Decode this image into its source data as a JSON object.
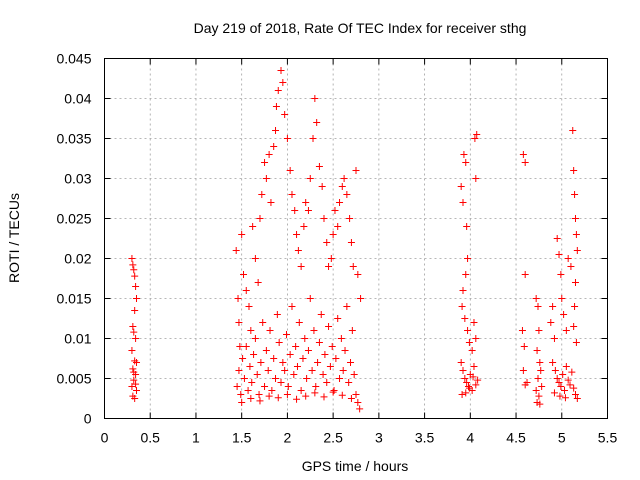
{
  "chart_data": {
    "type": "scatter",
    "title": "Day 219 of 2018, Rate Of TEC Index for receiver sthg",
    "xlabel": "GPS time / hours",
    "ylabel": "ROTI / TECUs",
    "xlim": [
      0,
      5.5
    ],
    "ylim": [
      0,
      0.045
    ],
    "xticks": [
      0,
      0.5,
      1,
      1.5,
      2,
      2.5,
      3,
      3.5,
      4,
      4.5,
      5,
      5.5
    ],
    "xtick_labels": [
      "0",
      "0.5",
      "1",
      "1.5",
      "2",
      "2.5",
      "3",
      "3.5",
      "4",
      "4.5",
      "5",
      "5.5"
    ],
    "yticks": [
      0,
      0.005,
      0.01,
      0.015,
      0.02,
      0.025,
      0.03,
      0.035,
      0.04,
      0.045
    ],
    "ytick_labels": [
      "0",
      "0.005",
      "0.01",
      "0.015",
      "0.02",
      "0.025",
      "0.03",
      "0.035",
      "0.04",
      "0.045"
    ],
    "grid": true,
    "marker": "+",
    "color": "#ff0000",
    "series": [
      {
        "name": "ROTI",
        "points": [
          [
            0.3,
            0.02
          ],
          [
            0.31,
            0.0192
          ],
          [
            0.32,
            0.0186
          ],
          [
            0.33,
            0.0178
          ],
          [
            0.34,
            0.0165
          ],
          [
            0.35,
            0.015
          ],
          [
            0.33,
            0.0135
          ],
          [
            0.31,
            0.0115
          ],
          [
            0.32,
            0.0108
          ],
          [
            0.34,
            0.01
          ],
          [
            0.3,
            0.0085
          ],
          [
            0.33,
            0.0072
          ],
          [
            0.31,
            0.0062
          ],
          [
            0.34,
            0.0055
          ],
          [
            0.32,
            0.0048
          ],
          [
            0.3,
            0.004
          ],
          [
            0.35,
            0.0035
          ],
          [
            0.31,
            0.0028
          ],
          [
            0.33,
            0.0025
          ],
          [
            0.34,
            0.0043
          ],
          [
            0.32,
            0.0058
          ],
          [
            0.35,
            0.007
          ],
          [
            1.44,
            0.021
          ],
          [
            1.46,
            0.015
          ],
          [
            1.47,
            0.012
          ],
          [
            1.48,
            0.009
          ],
          [
            1.5,
            0.023
          ],
          [
            1.52,
            0.018
          ],
          [
            1.55,
            0.016
          ],
          [
            1.58,
            0.014
          ],
          [
            1.6,
            0.011
          ],
          [
            1.62,
            0.024
          ],
          [
            1.65,
            0.02
          ],
          [
            1.68,
            0.017
          ],
          [
            1.7,
            0.025
          ],
          [
            1.72,
            0.028
          ],
          [
            1.75,
            0.032
          ],
          [
            1.77,
            0.03
          ],
          [
            1.8,
            0.033
          ],
          [
            1.82,
            0.027
          ],
          [
            1.85,
            0.034
          ],
          [
            1.87,
            0.036
          ],
          [
            1.88,
            0.039
          ],
          [
            1.9,
            0.041
          ],
          [
            1.93,
            0.0435
          ],
          [
            1.95,
            0.042
          ],
          [
            1.97,
            0.038
          ],
          [
            2.0,
            0.035
          ],
          [
            2.03,
            0.031
          ],
          [
            2.05,
            0.028
          ],
          [
            2.08,
            0.026
          ],
          [
            2.1,
            0.023
          ],
          [
            2.12,
            0.021
          ],
          [
            2.15,
            0.019
          ],
          [
            2.18,
            0.024
          ],
          [
            2.2,
            0.027
          ],
          [
            2.23,
            0.026
          ],
          [
            2.25,
            0.03
          ],
          [
            2.28,
            0.035
          ],
          [
            2.3,
            0.04
          ],
          [
            2.32,
            0.037
          ],
          [
            2.35,
            0.0315
          ],
          [
            2.38,
            0.029
          ],
          [
            2.4,
            0.025
          ],
          [
            2.43,
            0.022
          ],
          [
            2.45,
            0.019
          ],
          [
            2.48,
            0.02
          ],
          [
            2.5,
            0.023
          ],
          [
            2.52,
            0.026
          ],
          [
            2.55,
            0.024
          ],
          [
            2.57,
            0.027
          ],
          [
            2.6,
            0.029
          ],
          [
            2.62,
            0.03
          ],
          [
            2.65,
            0.028
          ],
          [
            2.68,
            0.025
          ],
          [
            2.7,
            0.022
          ],
          [
            2.72,
            0.019
          ],
          [
            2.75,
            0.031
          ],
          [
            2.77,
            0.018
          ],
          [
            2.8,
            0.015
          ],
          [
            1.45,
            0.004
          ],
          [
            1.47,
            0.006
          ],
          [
            1.49,
            0.003
          ],
          [
            1.51,
            0.0075
          ],
          [
            1.53,
            0.005
          ],
          [
            1.55,
            0.009
          ],
          [
            1.57,
            0.0035
          ],
          [
            1.59,
            0.0065
          ],
          [
            1.61,
            0.0045
          ],
          [
            1.63,
            0.008
          ],
          [
            1.65,
            0.01
          ],
          [
            1.67,
            0.0055
          ],
          [
            1.69,
            0.003
          ],
          [
            1.71,
            0.007
          ],
          [
            1.73,
            0.012
          ],
          [
            1.75,
            0.004
          ],
          [
            1.77,
            0.0085
          ],
          [
            1.79,
            0.006
          ],
          [
            1.81,
            0.011
          ],
          [
            1.83,
            0.0035
          ],
          [
            1.85,
            0.0075
          ],
          [
            1.87,
            0.005
          ],
          [
            1.89,
            0.013
          ],
          [
            1.91,
            0.0095
          ],
          [
            1.93,
            0.0045
          ],
          [
            1.95,
            0.007
          ],
          [
            1.97,
            0.006
          ],
          [
            1.99,
            0.0105
          ],
          [
            2.01,
            0.004
          ],
          [
            2.03,
            0.008
          ],
          [
            2.05,
            0.014
          ],
          [
            2.07,
            0.0055
          ],
          [
            2.09,
            0.009
          ],
          [
            2.11,
            0.0065
          ],
          [
            2.13,
            0.012
          ],
          [
            2.15,
            0.0035
          ],
          [
            2.17,
            0.0075
          ],
          [
            2.19,
            0.01
          ],
          [
            2.21,
            0.005
          ],
          [
            2.23,
            0.0085
          ],
          [
            2.25,
            0.015
          ],
          [
            2.27,
            0.006
          ],
          [
            2.29,
            0.011
          ],
          [
            2.31,
            0.004
          ],
          [
            2.33,
            0.007
          ],
          [
            2.35,
            0.0095
          ],
          [
            2.37,
            0.013
          ],
          [
            2.39,
            0.0055
          ],
          [
            2.41,
            0.008
          ],
          [
            2.43,
            0.0045
          ],
          [
            2.45,
            0.0115
          ],
          [
            2.47,
            0.0065
          ],
          [
            2.49,
            0.009
          ],
          [
            2.51,
            0.0035
          ],
          [
            2.53,
            0.0075
          ],
          [
            2.55,
            0.0125
          ],
          [
            2.57,
            0.005
          ],
          [
            2.59,
            0.01
          ],
          [
            2.61,
            0.006
          ],
          [
            2.63,
            0.0085
          ],
          [
            2.65,
            0.014
          ],
          [
            2.67,
            0.0045
          ],
          [
            2.69,
            0.007
          ],
          [
            2.71,
            0.011
          ],
          [
            2.73,
            0.0055
          ],
          [
            2.75,
            0.003
          ],
          [
            2.77,
            0.002
          ],
          [
            2.79,
            0.0012
          ],
          [
            1.5,
            0.002
          ],
          [
            1.6,
            0.0025
          ],
          [
            1.7,
            0.0022
          ],
          [
            1.8,
            0.0028
          ],
          [
            1.9,
            0.0026
          ],
          [
            2.0,
            0.003
          ],
          [
            2.1,
            0.0024
          ],
          [
            2.2,
            0.0028
          ],
          [
            2.3,
            0.0032
          ],
          [
            2.4,
            0.0027
          ],
          [
            2.5,
            0.0033
          ],
          [
            2.6,
            0.0029
          ],
          [
            2.7,
            0.0025
          ],
          [
            3.9,
            0.029
          ],
          [
            3.92,
            0.027
          ],
          [
            3.93,
            0.033
          ],
          [
            3.95,
            0.032
          ],
          [
            3.96,
            0.024
          ],
          [
            3.97,
            0.02
          ],
          [
            3.95,
            0.018
          ],
          [
            3.92,
            0.016
          ],
          [
            3.91,
            0.014
          ],
          [
            3.94,
            0.0125
          ],
          [
            3.97,
            0.011
          ],
          [
            3.99,
            0.0095
          ],
          [
            4.02,
            0.0085
          ],
          [
            4.05,
            0.035
          ],
          [
            4.07,
            0.0355
          ],
          [
            4.06,
            0.03
          ],
          [
            4.04,
            0.012
          ],
          [
            4.06,
            0.01
          ],
          [
            3.9,
            0.007
          ],
          [
            3.92,
            0.006
          ],
          [
            3.94,
            0.005
          ],
          [
            3.96,
            0.0045
          ],
          [
            3.98,
            0.004
          ],
          [
            4.0,
            0.0055
          ],
          [
            4.02,
            0.0035
          ],
          [
            4.04,
            0.0065
          ],
          [
            4.06,
            0.0042
          ],
          [
            4.08,
            0.0048
          ],
          [
            3.91,
            0.003
          ],
          [
            3.95,
            0.0032
          ],
          [
            3.99,
            0.0038
          ],
          [
            4.03,
            0.0052
          ],
          [
            4.58,
            0.033
          ],
          [
            4.6,
            0.032
          ],
          [
            4.6,
            0.018
          ],
          [
            4.57,
            0.011
          ],
          [
            4.59,
            0.009
          ],
          [
            4.58,
            0.006
          ],
          [
            4.6,
            0.0042
          ],
          [
            4.62,
            0.0045
          ],
          [
            4.72,
            0.015
          ],
          [
            4.74,
            0.014
          ],
          [
            4.75,
            0.011
          ],
          [
            4.73,
            0.0085
          ],
          [
            4.76,
            0.007
          ],
          [
            4.74,
            0.005
          ],
          [
            4.72,
            0.0035
          ],
          [
            4.75,
            0.0028
          ],
          [
            4.73,
            0.002
          ],
          [
            4.76,
            0.0018
          ],
          [
            4.78,
            0.004
          ],
          [
            4.77,
            0.006
          ],
          [
            4.88,
            0.012
          ],
          [
            4.9,
            0.014
          ],
          [
            4.92,
            0.01
          ],
          [
            4.95,
            0.0225
          ],
          [
            4.97,
            0.0205
          ],
          [
            4.99,
            0.018
          ],
          [
            5.0,
            0.015
          ],
          [
            5.02,
            0.013
          ],
          [
            5.05,
            0.011
          ],
          [
            5.07,
            0.02
          ],
          [
            5.1,
            0.019
          ],
          [
            5.12,
            0.036
          ],
          [
            5.13,
            0.031
          ],
          [
            5.14,
            0.028
          ],
          [
            5.15,
            0.025
          ],
          [
            5.16,
            0.023
          ],
          [
            5.17,
            0.021
          ],
          [
            5.15,
            0.017
          ],
          [
            5.14,
            0.014
          ],
          [
            5.13,
            0.0115
          ],
          [
            5.16,
            0.0095
          ],
          [
            4.9,
            0.007
          ],
          [
            4.93,
            0.006
          ],
          [
            4.95,
            0.005
          ],
          [
            4.97,
            0.0045
          ],
          [
            4.99,
            0.004
          ],
          [
            5.01,
            0.0055
          ],
          [
            5.03,
            0.0035
          ],
          [
            5.05,
            0.0065
          ],
          [
            5.07,
            0.0048
          ],
          [
            5.09,
            0.0042
          ],
          [
            5.11,
            0.0058
          ],
          [
            5.13,
            0.0038
          ],
          [
            5.15,
            0.003
          ],
          [
            5.17,
            0.0025
          ],
          [
            4.92,
            0.0032
          ],
          [
            4.98,
            0.0028
          ],
          [
            5.04,
            0.0026
          ]
        ]
      }
    ]
  }
}
